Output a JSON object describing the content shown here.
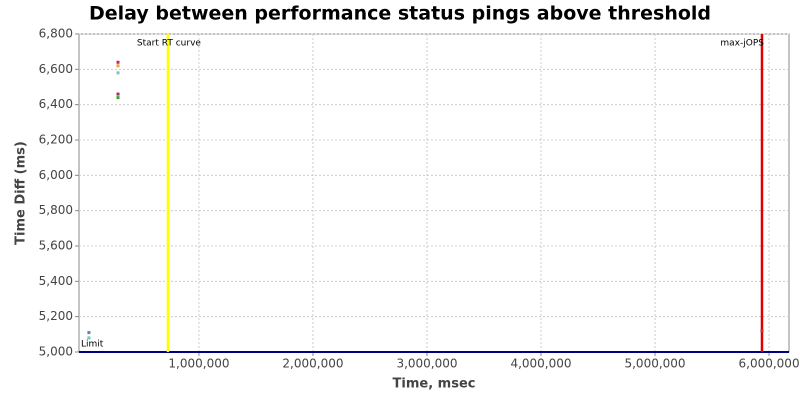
{
  "chart_data": {
    "type": "scatter",
    "title": "Delay between performance status pings above threshold",
    "x_label": "Time, msec",
    "y_label": "Time Diff (ms)",
    "xlim": [
      -52000,
      6175000
    ],
    "ylim": [
      5000,
      6800
    ],
    "xticks": [
      {
        "value": 1000000,
        "label": "1,000,000"
      },
      {
        "value": 2000000,
        "label": "2,000,000"
      },
      {
        "value": 3000000,
        "label": "3,000,000"
      },
      {
        "value": 4000000,
        "label": "4,000,000"
      },
      {
        "value": 5000000,
        "label": "5,000,000"
      },
      {
        "value": 6000000,
        "label": "6,000,000"
      }
    ],
    "yticks": [
      {
        "value": 5000,
        "label": "5,000"
      },
      {
        "value": 5200,
        "label": "5,200"
      },
      {
        "value": 5400,
        "label": "5,400"
      },
      {
        "value": 5600,
        "label": "5,600"
      },
      {
        "value": 5800,
        "label": "5,800"
      },
      {
        "value": 6000,
        "label": "6,000"
      },
      {
        "value": 6200,
        "label": "6,200"
      },
      {
        "value": 6400,
        "label": "6,400"
      },
      {
        "value": 6600,
        "label": "6,600"
      },
      {
        "value": 6800,
        "label": "6,800"
      }
    ],
    "grid": true,
    "vmarkers": [
      {
        "value": 728000,
        "label": "Start RT curve",
        "color": "#ffff00",
        "label_side": "right"
      },
      {
        "value": 5938000,
        "label": "max-jOPS",
        "color": "#e00000",
        "label_side": "left"
      }
    ],
    "hmarkers": [
      {
        "value": 5000,
        "label": "Limit",
        "color": "#000080"
      }
    ],
    "series": [
      {
        "color": "#c0304a",
        "x": [
          290000,
          5938000
        ],
        "values": [
          6640,
          5120
        ]
      },
      {
        "color": "#f0a040",
        "x": [
          290000
        ],
        "values": [
          6620
        ]
      },
      {
        "color": "#70c8c0",
        "x": [
          290000,
          35000
        ],
        "values": [
          6580,
          5080
        ]
      },
      {
        "color": "#a03060",
        "x": [
          290000
        ],
        "values": [
          6460
        ]
      },
      {
        "color": "#40a040",
        "x": [
          290000
        ],
        "values": [
          6440
        ]
      },
      {
        "color": "#6080c0",
        "x": [
          35000
        ],
        "values": [
          5110
        ]
      }
    ]
  }
}
